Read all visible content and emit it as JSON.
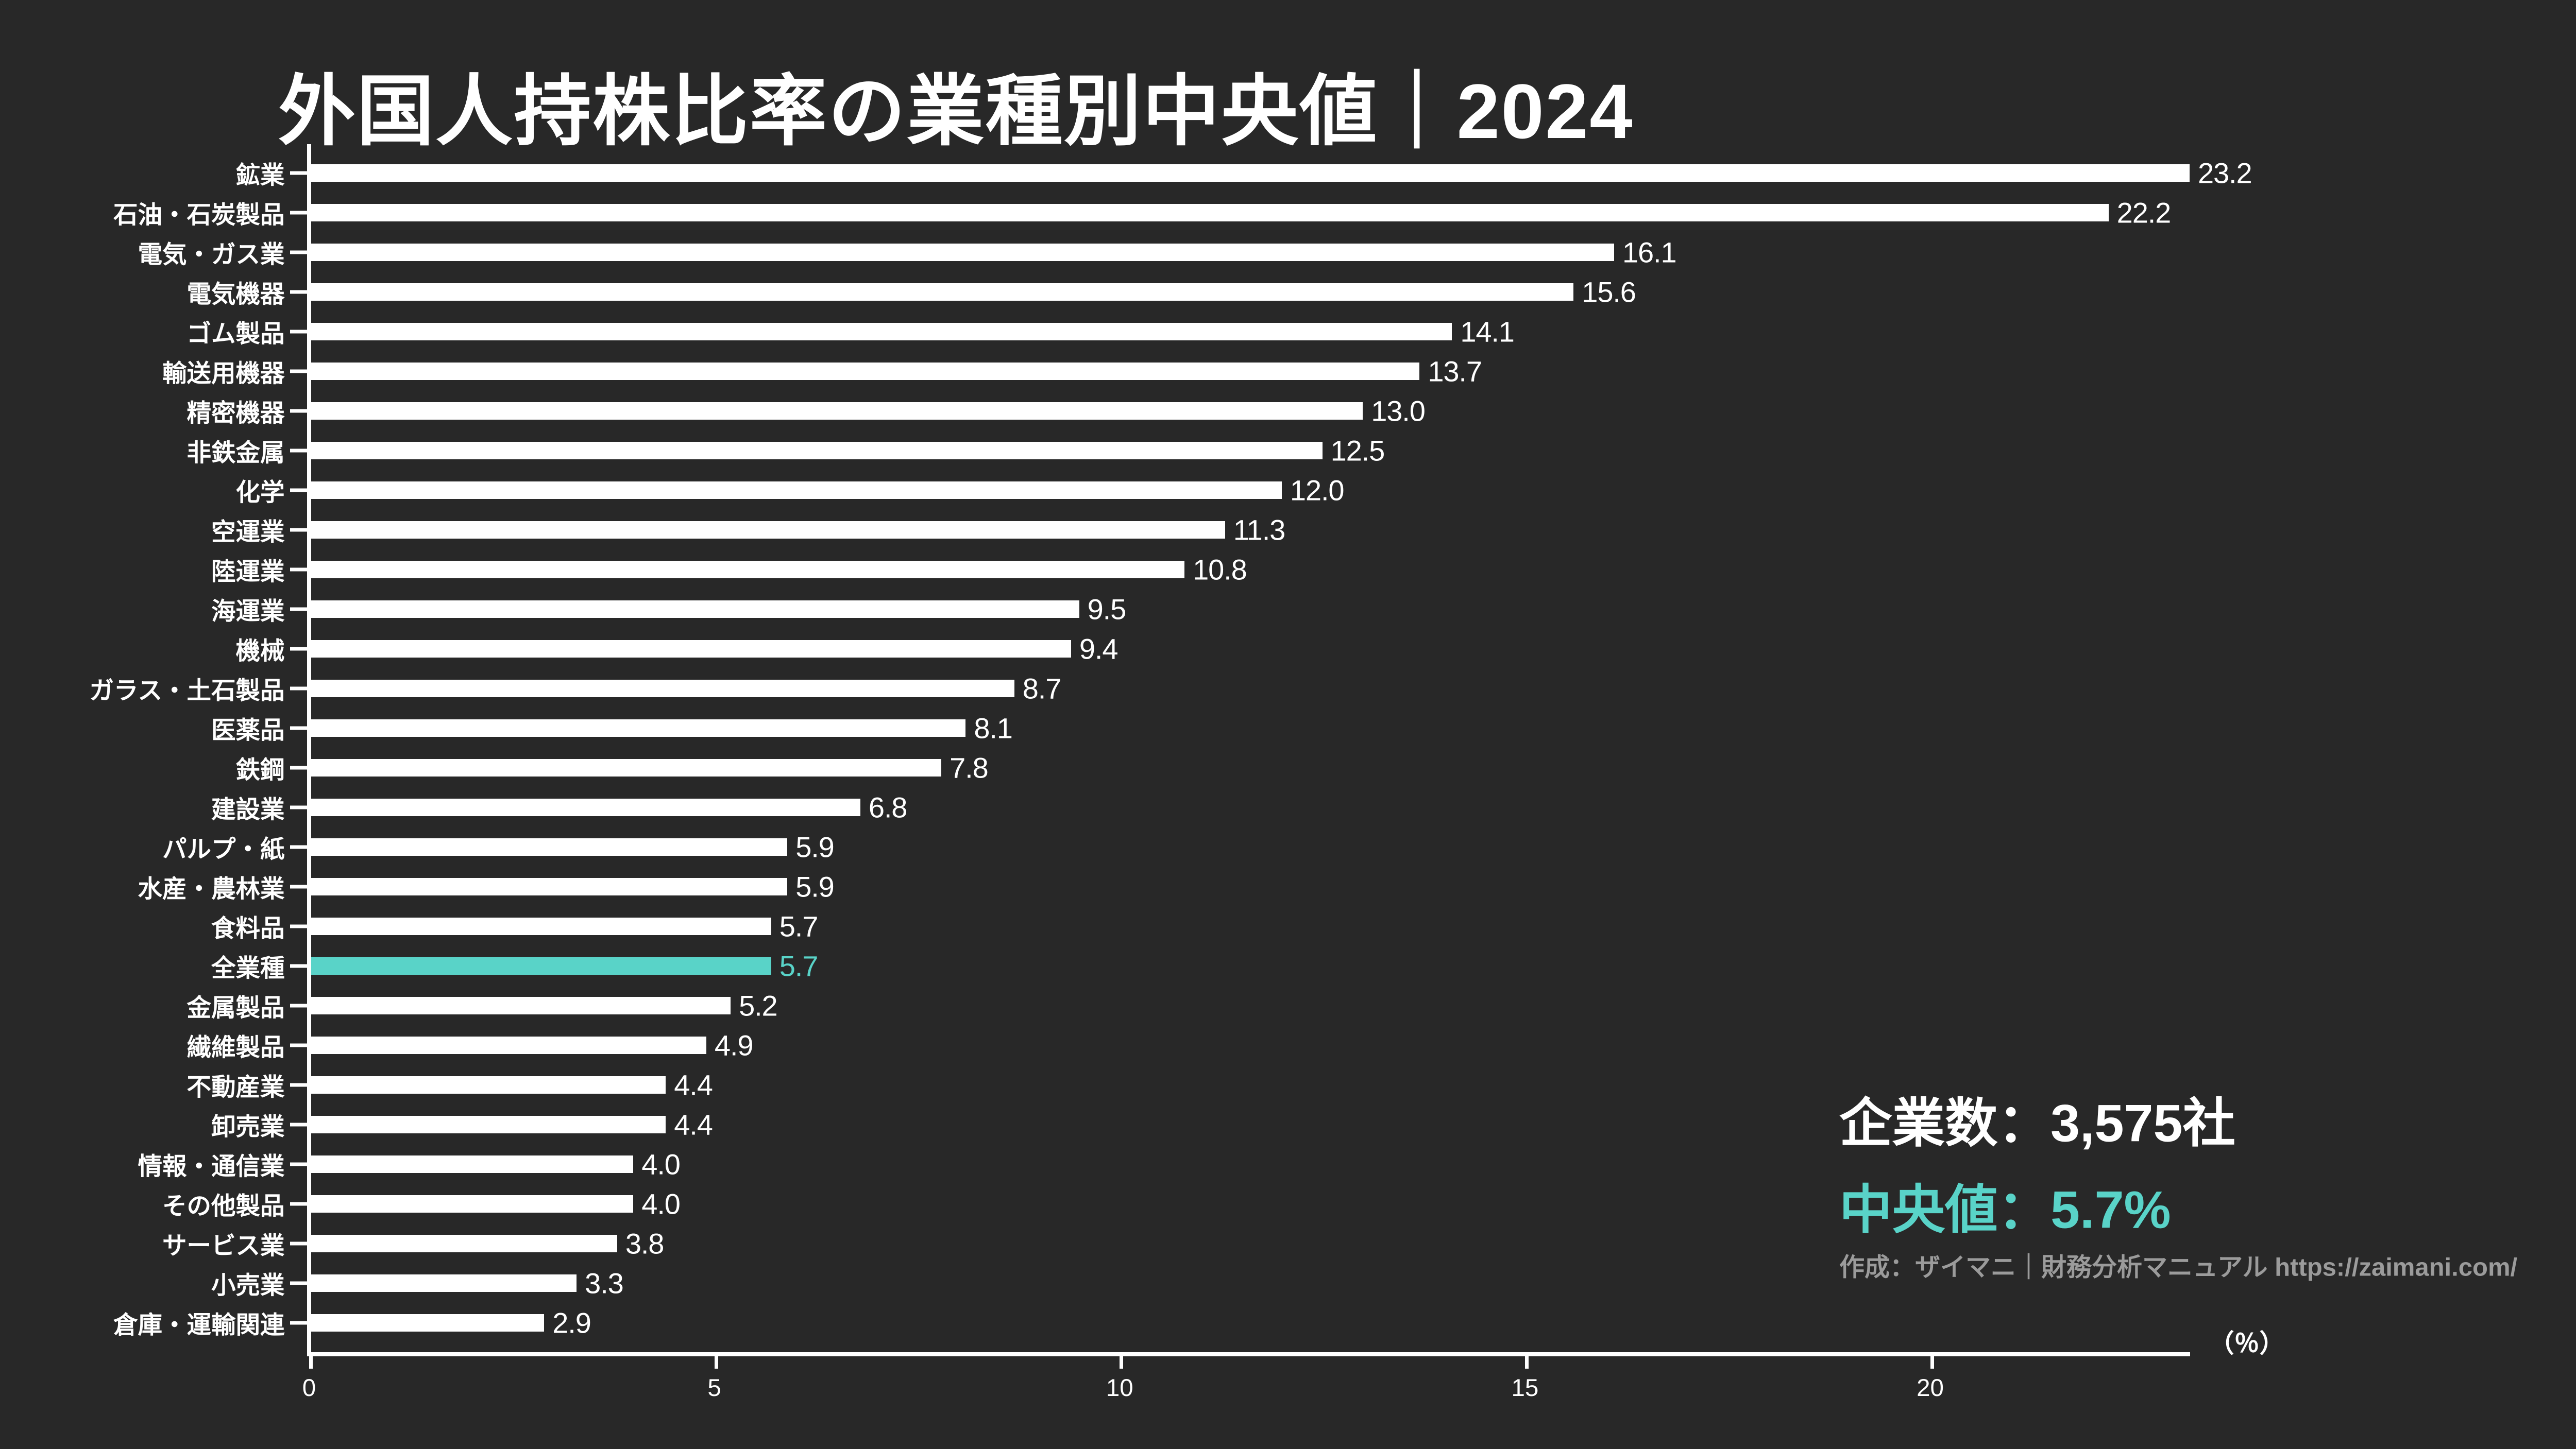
{
  "title": "外国人持株比率の業種別中央値｜2024",
  "chart_data": {
    "type": "bar",
    "orientation": "horizontal",
    "title": "外国人持株比率の業種別中央値｜2024",
    "categories": [
      "鉱業",
      "石油・石炭製品",
      "電気・ガス業",
      "電気機器",
      "ゴム製品",
      "輸送用機器",
      "精密機器",
      "非鉄金属",
      "化学",
      "空運業",
      "陸運業",
      "海運業",
      "機械",
      "ガラス・土石製品",
      "医薬品",
      "鉄鋼",
      "建設業",
      "パルプ・紙",
      "水産・農林業",
      "食料品",
      "全業種",
      "金属製品",
      "繊維製品",
      "不動産業",
      "卸売業",
      "情報・通信業",
      "その他製品",
      "サービス業",
      "小売業",
      "倉庫・運輸関連"
    ],
    "values": [
      23.2,
      22.2,
      16.1,
      15.6,
      14.1,
      13.7,
      13.0,
      12.5,
      12.0,
      11.3,
      10.8,
      9.5,
      9.4,
      8.7,
      8.1,
      7.8,
      6.8,
      5.9,
      5.9,
      5.7,
      5.7,
      5.2,
      4.9,
      4.4,
      4.4,
      4.0,
      4.0,
      3.8,
      3.3,
      2.9
    ],
    "highlight_category": "全業種",
    "highlight_index": 20,
    "xlim": [
      0,
      23.2
    ],
    "x_ticks": [
      0,
      5,
      10,
      15,
      20
    ],
    "unit_label": "（％）",
    "grid": false,
    "legend": false,
    "bar_color": "#ffffff",
    "highlight_color": "#59d3c8",
    "background_color": "#282828",
    "axis_color": "#ffffff"
  },
  "annotations": {
    "company_count": "企業数：3,575社",
    "median": "中央値：5.7%",
    "credit": "作成：ザイマニ｜財務分析マニュアル https://zaimani.com/"
  }
}
